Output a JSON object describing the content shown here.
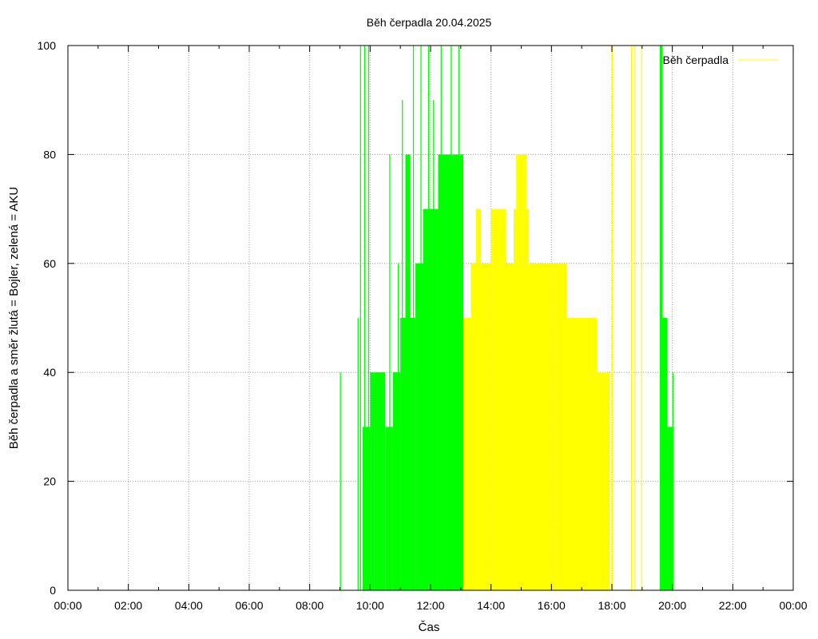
{
  "chart_data": {
    "type": "bar",
    "title": "Běh čerpadla 20.04.2025",
    "xlabel": "Čas",
    "ylabel": "Běh čerpadla a směr žlutá = Bojler, zelená = AKU",
    "xlim": [
      0,
      24
    ],
    "ylim": [
      0,
      100
    ],
    "x_ticks": [
      "00:00",
      "02:00",
      "04:00",
      "06:00",
      "08:00",
      "10:00",
      "12:00",
      "14:00",
      "16:00",
      "18:00",
      "20:00",
      "22:00",
      "00:00"
    ],
    "y_ticks": [
      "0",
      "20",
      "40",
      "60",
      "80",
      "100"
    ],
    "grid": true,
    "legend": {
      "position": "top-right",
      "entries": [
        {
          "name": "Běh čerpadla",
          "color": "#ffff00"
        }
      ]
    },
    "colors": {
      "aku": "#00ff00",
      "bojler": "#ffff00",
      "frame": "#000000",
      "grid": "#a0a0a0"
    },
    "series": [
      {
        "name": "AKU",
        "color": "#00ff00",
        "segments": [
          {
            "start": "09:00",
            "end": "09:02",
            "value": 40
          },
          {
            "start": "09:35",
            "end": "09:37",
            "value": 50
          },
          {
            "start": "09:40",
            "end": "09:42",
            "value": 100
          },
          {
            "start": "09:45",
            "end": "09:50",
            "value": 30
          },
          {
            "start": "09:48",
            "end": "09:50",
            "value": 100
          },
          {
            "start": "09:50",
            "end": "10:00",
            "value": 30
          },
          {
            "start": "09:56",
            "end": "09:58",
            "value": 100
          },
          {
            "start": "10:00",
            "end": "10:08",
            "value": 40
          },
          {
            "start": "10:08",
            "end": "10:30",
            "value": 40
          },
          {
            "start": "10:30",
            "end": "10:45",
            "value": 30
          },
          {
            "start": "10:38",
            "end": "10:40",
            "value": 80
          },
          {
            "start": "10:45",
            "end": "11:00",
            "value": 40
          },
          {
            "start": "10:55",
            "end": "10:57",
            "value": 60
          },
          {
            "start": "11:00",
            "end": "11:10",
            "value": 50
          },
          {
            "start": "11:03",
            "end": "11:05",
            "value": 90
          },
          {
            "start": "11:10",
            "end": "11:20",
            "value": 80
          },
          {
            "start": "11:20",
            "end": "11:30",
            "value": 50
          },
          {
            "start": "11:25",
            "end": "11:27",
            "value": 100
          },
          {
            "start": "11:30",
            "end": "11:45",
            "value": 60
          },
          {
            "start": "11:40",
            "end": "11:42",
            "value": 100
          },
          {
            "start": "11:45",
            "end": "12:00",
            "value": 70
          },
          {
            "start": "11:55",
            "end": "11:57",
            "value": 100
          },
          {
            "start": "12:00",
            "end": "12:15",
            "value": 70
          },
          {
            "start": "12:05",
            "end": "12:07",
            "value": 90
          },
          {
            "start": "12:15",
            "end": "12:30",
            "value": 80
          },
          {
            "start": "12:20",
            "end": "12:22",
            "value": 100
          },
          {
            "start": "12:30",
            "end": "12:45",
            "value": 80
          },
          {
            "start": "12:40",
            "end": "12:42",
            "value": 100
          },
          {
            "start": "12:45",
            "end": "13:05",
            "value": 80
          },
          {
            "start": "12:55",
            "end": "12:57",
            "value": 100
          },
          {
            "start": "19:35",
            "end": "19:40",
            "value": 100
          },
          {
            "start": "19:40",
            "end": "19:50",
            "value": 50
          },
          {
            "start": "19:50",
            "end": "20:00",
            "value": 30
          },
          {
            "start": "20:00",
            "end": "20:02",
            "value": 40
          }
        ]
      },
      {
        "name": "Bojler",
        "color": "#ffff00",
        "segments": [
          {
            "start": "13:05",
            "end": "13:20",
            "value": 50
          },
          {
            "start": "13:20",
            "end": "13:35",
            "value": 60
          },
          {
            "start": "13:30",
            "end": "13:40",
            "value": 70
          },
          {
            "start": "13:40",
            "end": "14:00",
            "value": 60
          },
          {
            "start": "14:00",
            "end": "14:30",
            "value": 70
          },
          {
            "start": "14:30",
            "end": "14:45",
            "value": 60
          },
          {
            "start": "14:45",
            "end": "15:15",
            "value": 70
          },
          {
            "start": "14:50",
            "end": "15:10",
            "value": 80
          },
          {
            "start": "15:15",
            "end": "15:30",
            "value": 60
          },
          {
            "start": "15:30",
            "end": "16:00",
            "value": 60
          },
          {
            "start": "16:00",
            "end": "16:30",
            "value": 60
          },
          {
            "start": "16:30",
            "end": "17:30",
            "value": 50
          },
          {
            "start": "17:30",
            "end": "17:55",
            "value": 40
          },
          {
            "start": "18:00",
            "end": "18:02",
            "value": 100
          },
          {
            "start": "18:38",
            "end": "18:40",
            "value": 100
          },
          {
            "start": "18:45",
            "end": "18:47",
            "value": 100
          },
          {
            "start": "18:58",
            "end": "19:00",
            "value": 100
          }
        ]
      }
    ]
  }
}
